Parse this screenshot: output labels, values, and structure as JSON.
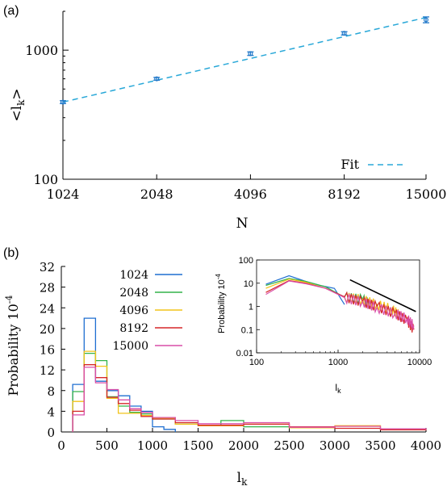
{
  "chart_data": [
    {
      "panel_label": "(a)",
      "type": "line",
      "xlabel": "N",
      "ylabel": "<l",
      "ylabel_sub": "k",
      "ylabel_tail": ">",
      "x_scale": "log",
      "y_scale": "log",
      "xticks": [
        1024,
        2048,
        4096,
        8192,
        15000
      ],
      "yticks": [
        100,
        1000
      ],
      "ylim": [
        100,
        2000
      ],
      "legend": {
        "label": "Fit",
        "position": "bottom-right"
      },
      "colors": {
        "points": "#1f77c9",
        "fit": "#29a8d8"
      },
      "series": [
        {
          "name": "",
          "x": [
            1024,
            2048,
            4096,
            8192,
            15000
          ],
          "y": [
            396,
            600,
            940,
            1350,
            1720
          ],
          "err": [
            10,
            15,
            30,
            40,
            90
          ]
        }
      ],
      "fit": {
        "name": "Fit",
        "x": [
          1024,
          15000
        ],
        "y": [
          396,
          1790
        ]
      }
    },
    {
      "panel_label": "(b)",
      "type": "line",
      "xlabel": "l",
      "xlabel_sub": "k",
      "ylabel": "Probability 10",
      "ylabel_sup": "-4",
      "xlim": [
        0,
        4000
      ],
      "ylim": [
        0,
        32
      ],
      "xticks": [
        0,
        500,
        1000,
        1500,
        2000,
        2500,
        3000,
        3500,
        4000
      ],
      "yticks": [
        0,
        4,
        8,
        12,
        16,
        20,
        24,
        28,
        32
      ],
      "legend": {
        "position": "top-left"
      },
      "series": [
        {
          "name": "1024",
          "color": "#1f6fd1",
          "edges": [
            125,
            250,
            375,
            500,
            625,
            750,
            875,
            1000,
            1125,
            1250
          ],
          "values": [
            9.2,
            22,
            9.8,
            8,
            7,
            5,
            4,
            1,
            0.5
          ]
        },
        {
          "name": "2048",
          "color": "#34b34a",
          "edges": [
            125,
            250,
            375,
            500,
            625,
            750,
            875,
            1000,
            1250,
            1500,
            1750,
            2000,
            2500
          ],
          "values": [
            7.8,
            15.2,
            13.8,
            6.8,
            5,
            3.8,
            3.5,
            2.5,
            1.5,
            1.2,
            2.2,
            1,
            0.8
          ]
        },
        {
          "name": "4096",
          "color": "#f2c318",
          "edges": [
            125,
            250,
            375,
            500,
            625,
            750,
            875,
            1000,
            1250,
            1500,
            2000,
            2500,
            3000,
            3500,
            4000
          ],
          "values": [
            5.9,
            15.6,
            12.7,
            6.5,
            3.6,
            3.6,
            3.2,
            2.7,
            1.5,
            1.2,
            1.5,
            0.8,
            1.2,
            0.5,
            0.6
          ]
        },
        {
          "name": "8192",
          "color": "#d62728",
          "edges": [
            125,
            250,
            375,
            500,
            625,
            750,
            875,
            1000,
            1250,
            1500,
            2000,
            2500,
            3000,
            3500,
            4000
          ],
          "values": [
            4,
            13,
            10.5,
            6.7,
            5.5,
            4.2,
            3,
            2.5,
            1.8,
            1.3,
            1.5,
            1,
            0.7,
            0.4,
            0.5
          ]
        },
        {
          "name": "15000",
          "color": "#d94fa8",
          "edges": [
            125,
            250,
            375,
            500,
            625,
            750,
            875,
            1000,
            1250,
            1500,
            2000,
            2500,
            3000,
            3500,
            4000
          ],
          "values": [
            3.3,
            12.5,
            9.5,
            8.2,
            6.2,
            4.5,
            3.8,
            2.8,
            2.2,
            1.6,
            1.8,
            0.9,
            1.1,
            0.6,
            0.4
          ]
        }
      ],
      "inset": {
        "type": "line",
        "x_scale": "log",
        "y_scale": "log",
        "xlabel": "l",
        "xlabel_sub": "k",
        "ylabel": "Probability 10",
        "ylabel_sup": "-4",
        "xlim": [
          100,
          10000
        ],
        "ylim": [
          0.01,
          100
        ],
        "xticks": [
          100,
          1000,
          10000
        ],
        "yticks": [
          0.01,
          0.1,
          1,
          10,
          100
        ],
        "reference_line": {
          "x": [
            1400,
            9000
          ],
          "y": [
            14,
            0.6
          ],
          "color": "#000000"
        },
        "series": [
          {
            "name": "1024",
            "color": "#1f6fd1",
            "x": [
              130,
              250,
              400,
              600,
              900,
              1200
            ],
            "y": [
              9,
              21,
              12,
              8,
              6,
              1.2
            ]
          },
          {
            "name": "2048",
            "color": "#34b34a",
            "x": [
              130,
              250,
              400,
              700,
              1200,
              2000,
              2800
            ],
            "y": [
              8,
              16,
              12,
              7,
              2.5,
              2,
              1
            ]
          },
          {
            "name": "4096",
            "color": "#f2c318",
            "x": [
              130,
              250,
              400,
              700,
              1200,
              2000,
              3000,
              4500,
              5800
            ],
            "y": [
              6,
              15,
              11,
              6,
              2.5,
              2,
              1.2,
              0.8,
              0.4
            ]
          },
          {
            "name": "8192",
            "color": "#d62728",
            "x": [
              130,
              250,
              400,
              700,
              1200,
              2000,
              3000,
              5000,
              7000,
              8500
            ],
            "y": [
              4,
              13,
              10,
              6,
              2.6,
              1.6,
              1,
              0.5,
              0.25,
              0.1
            ]
          },
          {
            "name": "15000",
            "color": "#d94fa8",
            "x": [
              130,
              250,
              400,
              700,
              1200,
              2000,
              3000,
              5000,
              7000,
              8500
            ],
            "y": [
              3.3,
              12.5,
              9.5,
              6,
              2.4,
              1.6,
              0.9,
              0.5,
              0.3,
              0.15
            ]
          }
        ]
      }
    }
  ]
}
